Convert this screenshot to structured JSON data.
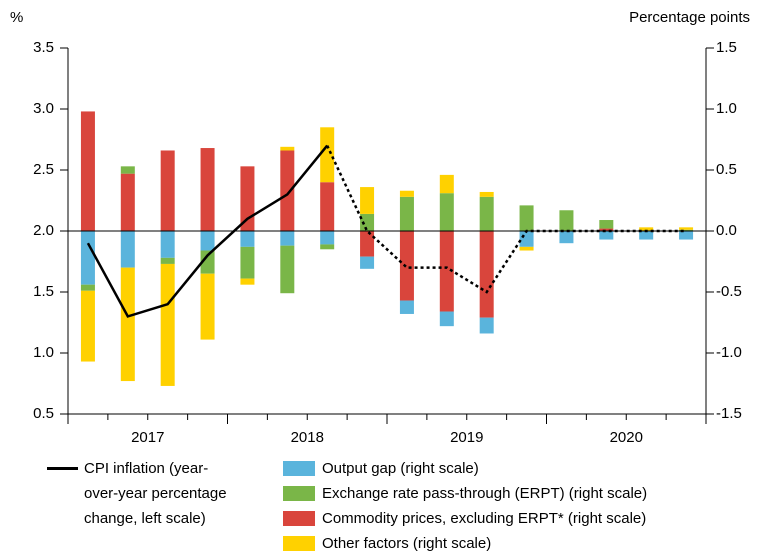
{
  "chart_data": {
    "type": "bar",
    "ylabel": "%",
    "y2label": "Percentage points",
    "categories": [
      "2017",
      null,
      null,
      null,
      "2018",
      null,
      null,
      null,
      "2019",
      null,
      null,
      null,
      "2020",
      null,
      null,
      null
    ],
    "ylim": [
      0.5,
      3.5
    ],
    "yticks": [
      0.5,
      {
        "value": 1,
        "label": "1.0"
      },
      1.5,
      {
        "value": 2,
        "label": "2.0"
      },
      2.5,
      {
        "value": 3,
        "label": "3.0"
      },
      3.5
    ],
    "y2lim": [
      -1.5,
      1.5
    ],
    "y2ticks": [
      -1.5,
      {
        "value": -1,
        "label": "-1.0"
      },
      -0.5,
      {
        "value": 0,
        "label": "0.0"
      },
      0.5,
      {
        "value": 1,
        "label": "1.0"
      },
      1.5
    ],
    "line": {
      "name": "CPI inflation (year-over-year percentage change, left scale)",
      "color": "#000000",
      "dashed_from_index": 6,
      "values": [
        1.9,
        1.3,
        1.4,
        1.8,
        2.1,
        2.3,
        2.7,
        2.0,
        1.7,
        1.7,
        1.5,
        2.0,
        2.0,
        2.0,
        2.0,
        2.0
      ]
    },
    "series": [
      {
        "name": "Commodity prices, excluding ERPT* (right scale)",
        "color": "#d9453c",
        "axis": "y2",
        "values": [
          0.98,
          0.47,
          0.66,
          0.68,
          0.53,
          0.66,
          0.4,
          -0.21,
          -0.57,
          -0.66,
          -0.71,
          0,
          0,
          0.02,
          0,
          0
        ]
      },
      {
        "name": "Output gap (right scale)",
        "color": "#5ab4dc",
        "axis": "y2",
        "values": [
          -0.44,
          -0.3,
          -0.22,
          -0.16,
          -0.13,
          -0.12,
          -0.11,
          -0.1,
          -0.11,
          -0.12,
          -0.13,
          -0.13,
          -0.1,
          -0.07,
          -0.07,
          -0.07
        ]
      },
      {
        "name": "Exchange rate pass-through (ERPT) (right scale)",
        "color": "#7ab648",
        "axis": "y2",
        "values": [
          -0.05,
          0.06,
          -0.05,
          -0.19,
          -0.26,
          -0.39,
          -0.04,
          0.14,
          0.28,
          0.31,
          0.28,
          0.21,
          0.17,
          0.07,
          0,
          0.01
        ]
      },
      {
        "name": "Other factors (right scale)",
        "color": "#ffd100",
        "axis": "y2",
        "values": [
          -0.58,
          -0.93,
          -1.0,
          -0.54,
          -0.05,
          0.03,
          0.45,
          0.22,
          0.05,
          0.15,
          0.04,
          -0.03,
          0,
          0,
          0.03,
          0.02
        ]
      }
    ]
  }
}
